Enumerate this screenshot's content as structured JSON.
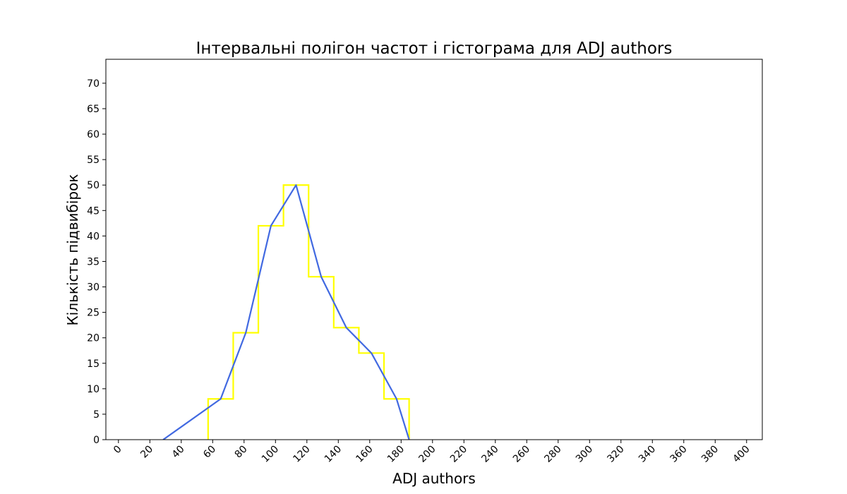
{
  "chart_data": {
    "type": "bar",
    "title": "Інтервальні полігон частот і гістограма для ADJ authors",
    "xlabel": "ADJ authors",
    "ylabel": "Кількість підвибірок",
    "xlim": [
      -8,
      410
    ],
    "ylim": [
      0,
      74.7
    ],
    "x_ticks": [
      0,
      20,
      40,
      60,
      80,
      100,
      120,
      140,
      160,
      180,
      200,
      220,
      240,
      260,
      280,
      300,
      320,
      340,
      360,
      380,
      400
    ],
    "y_ticks": [
      0,
      5,
      10,
      15,
      20,
      25,
      30,
      35,
      40,
      45,
      50,
      55,
      60,
      65,
      70
    ],
    "grid": false,
    "legend": "none",
    "series": [
      {
        "kind": "histogram-step",
        "color": "#ffff00",
        "bin_edges": [
          57.1,
          73.1,
          89.1,
          105.1,
          121.1,
          137.1,
          153.1,
          169.1,
          185.1
        ],
        "counts": [
          8,
          21,
          42,
          50,
          32,
          22,
          17,
          8
        ]
      },
      {
        "kind": "frequency-polygon",
        "color": "#4169e1",
        "x": [
          28.5,
          65.1,
          81.1,
          97.1,
          113.1,
          129.1,
          145.1,
          161.1,
          177.1,
          185.1
        ],
        "y": [
          0,
          8,
          21,
          42,
          50,
          32,
          22,
          17,
          8,
          0
        ]
      }
    ]
  }
}
